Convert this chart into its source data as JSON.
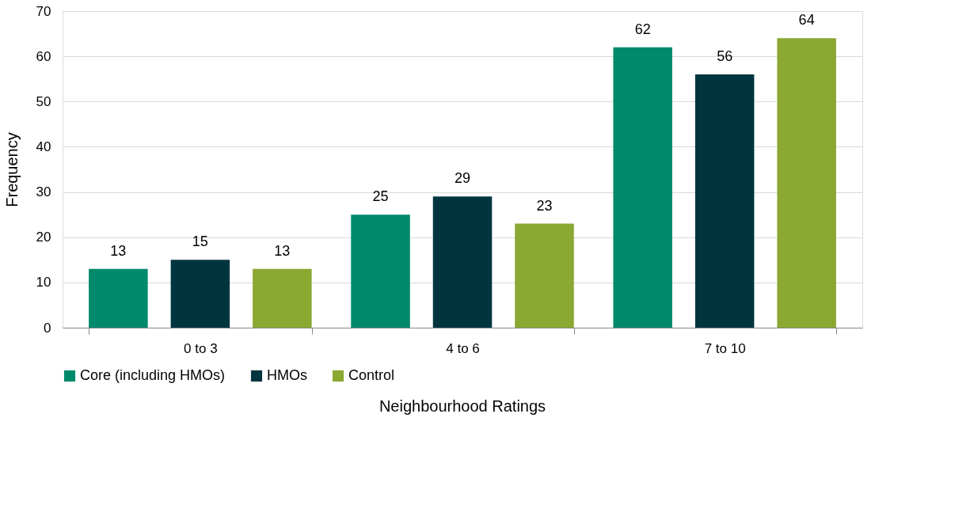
{
  "chart_data": {
    "type": "bar",
    "xlabel": "Neighbourhood Ratings",
    "ylabel": "Frequency",
    "categories": [
      "0 to 3",
      "4 to 6",
      "7 to 10"
    ],
    "series": [
      {
        "name": "Core (including HMOs)",
        "color": "#00896a",
        "values": [
          13,
          25,
          62
        ]
      },
      {
        "name": "HMOs",
        "color": "#003540",
        "values": [
          15,
          29,
          56
        ]
      },
      {
        "name": "Control",
        "color": "#8aa832",
        "values": [
          13,
          23,
          64
        ]
      }
    ],
    "ylim": [
      0,
      70
    ],
    "yticks": [
      0,
      10,
      20,
      30,
      40,
      50,
      60,
      70
    ],
    "grid": "y",
    "legend": "bottom",
    "data_labels": true
  }
}
